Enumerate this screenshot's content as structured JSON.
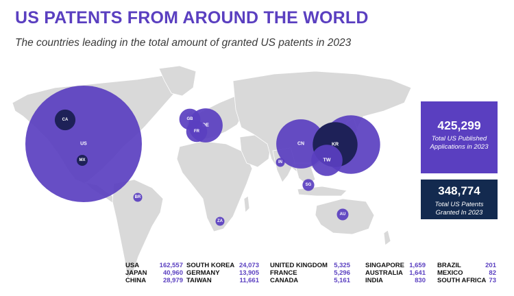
{
  "header": {
    "title": "US PATENTS FROM AROUND THE WORLD",
    "subtitle": "The countries leading in the total amount of granted US patents in 2023"
  },
  "colors": {
    "accent": "#5a3fc0",
    "dark_navy": "#132a4f",
    "land": "#d9d9d9",
    "bubble_fill": "#5a3fc0",
    "bubble_dark": "#1e2158"
  },
  "stats": {
    "published": {
      "value": "425,299",
      "label": "Total US Published Applications in 2023"
    },
    "granted": {
      "value": "348,774",
      "label": "Total US Patents Granted In 2023"
    }
  },
  "map_markers": [
    {
      "code": "US",
      "value": 162557
    },
    {
      "code": "CA",
      "value": 5161
    },
    {
      "code": "MX",
      "value": 82
    },
    {
      "code": "BR",
      "value": 201
    },
    {
      "code": "GB",
      "value": 5325
    },
    {
      "code": "FR",
      "value": 5296
    },
    {
      "code": "DE",
      "value": 13905
    },
    {
      "code": "ZA",
      "value": 73
    },
    {
      "code": "IN",
      "value": 830
    },
    {
      "code": "CN",
      "value": 28979
    },
    {
      "code": "KR",
      "value": 24073
    },
    {
      "code": "JP",
      "value": 40960
    },
    {
      "code": "TW",
      "value": 11661
    },
    {
      "code": "SG",
      "value": 1659
    },
    {
      "code": "AU",
      "value": 1641
    }
  ],
  "legend": [
    [
      {
        "name": "USA",
        "value": "162,557"
      },
      {
        "name": "JAPAN",
        "value": "40,960"
      },
      {
        "name": "CHINA",
        "value": "28,979"
      }
    ],
    [
      {
        "name": "SOUTH KOREA",
        "value": "24,073"
      },
      {
        "name": "GERMANY",
        "value": "13,905"
      },
      {
        "name": "TAIWAN",
        "value": "11,661"
      }
    ],
    [
      {
        "name": "UNITED KINGDOM",
        "value": "5,325"
      },
      {
        "name": "FRANCE",
        "value": "5,296"
      },
      {
        "name": "CANADA",
        "value": "5,161"
      }
    ],
    [
      {
        "name": "SINGAPORE",
        "value": "1,659"
      },
      {
        "name": "AUSTRALIA",
        "value": "1,641"
      },
      {
        "name": "INDIA",
        "value": "830"
      }
    ],
    [
      {
        "name": "BRAZIL",
        "value": "201"
      },
      {
        "name": "MEXICO",
        "value": "82"
      },
      {
        "name": "SOUTH AFRICA",
        "value": "73"
      }
    ]
  ]
}
